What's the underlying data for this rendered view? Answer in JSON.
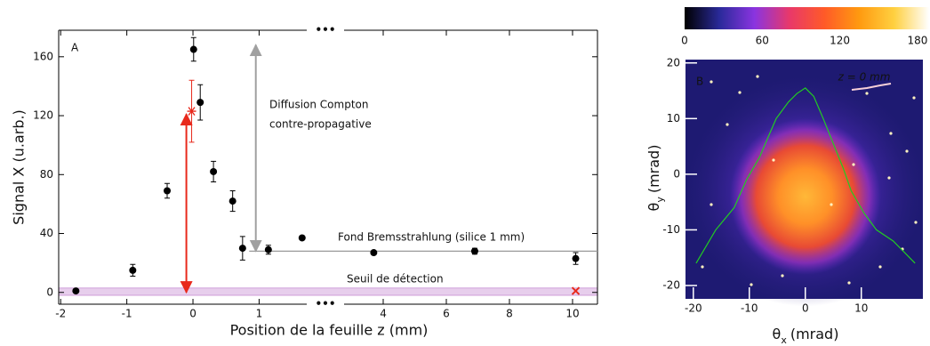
{
  "chart_data": [
    {
      "type": "scatter",
      "panel_label": "A",
      "x_label": "Position de la feuille z (mm)",
      "y_label": "Signal X (u.arb.)",
      "xlim": [
        [
          -2.03,
          1.72
        ],
        [
          2.76,
          10.79
        ]
      ],
      "ylim": [
        -8,
        178
      ],
      "xticks": [
        -2,
        -1,
        0,
        1,
        4,
        6,
        8,
        10
      ],
      "yticks": [
        0,
        40,
        80,
        120,
        160
      ],
      "break_label": "•••",
      "series": [
        {
          "color": "#000000",
          "marker": "circle",
          "x": [
            -1.77,
            -0.91,
            -0.39,
            0.01,
            0.11,
            0.31,
            0.6,
            0.75,
            1.14,
            1.65,
            3.7,
            6.9,
            10.1
          ],
          "values": [
            1,
            15,
            69,
            165,
            129,
            82,
            62,
            30,
            29,
            37,
            27,
            28,
            23
          ],
          "errors": [
            1,
            4,
            5,
            8,
            12,
            7,
            7,
            8,
            3,
            1,
            1,
            2,
            4
          ]
        },
        {
          "color": "#e8291c",
          "marker": "asterisk",
          "x": [
            -0.02
          ],
          "values": [
            123
          ],
          "errors": [
            21
          ]
        },
        {
          "color": "#e8291c",
          "marker": "x",
          "x": [
            10.1
          ],
          "values": [
            1
          ]
        }
      ],
      "threshold_band": [
        -2,
        3
      ],
      "threshold_color": "#a03cb4",
      "threshold_text": "Seuil de détection",
      "background_level": {
        "y": 28,
        "x": [
          0.85,
          10.79
        ],
        "color": "#9a9a9a",
        "text": "Fond Bremsstrahlung (silice 1 mm)"
      },
      "arrows": [
        {
          "x": -0.1,
          "y": [
            0,
            121
          ],
          "color": "#e8291c"
        },
        {
          "x": 0.95,
          "y": [
            28,
            168
          ],
          "color": "#a0a0a0"
        }
      ],
      "compton_text": [
        "Diffusion Compton",
        "contre-propagative"
      ]
    },
    {
      "type": "heatmap",
      "panel_label": "B",
      "annotation": "z = 0 mm",
      "x_label": {
        "symbol": "θ",
        "subscript": "x",
        "unit": "(mrad)"
      },
      "y_label": {
        "symbol": "θ",
        "subscript": "y",
        "unit": "(mrad)"
      },
      "xlim": [
        -21.4,
        21
      ],
      "ylim": [
        -22.4,
        20.6
      ],
      "xticks": [
        -20,
        -10,
        0,
        10
      ],
      "yticks": [
        20,
        10,
        0,
        -10,
        -20
      ],
      "clim": [
        0,
        189
      ],
      "cticks": [
        0,
        60,
        120,
        180
      ],
      "colormap": [
        "#000000",
        "#2a2a9a",
        "#8a34e0",
        "#e8386a",
        "#ff5a28",
        "#ff9a10",
        "#ffd040",
        "#ffffff"
      ],
      "profile": {
        "color": "#22cc22",
        "x": [
          -19.5,
          -16,
          -12.7,
          -10.5,
          -8.2,
          -6.5,
          -5.2,
          -3,
          -1.5,
          0,
          1.5,
          3.2,
          5.2,
          6.8,
          8.2,
          10.5,
          12.7,
          15.7,
          19.6
        ],
        "values": [
          -16,
          -10,
          -6,
          -1,
          3,
          7,
          10,
          13,
          14.5,
          15.5,
          14,
          10,
          5,
          1,
          -3,
          -7,
          -10,
          -12,
          -16
        ]
      }
    }
  ]
}
